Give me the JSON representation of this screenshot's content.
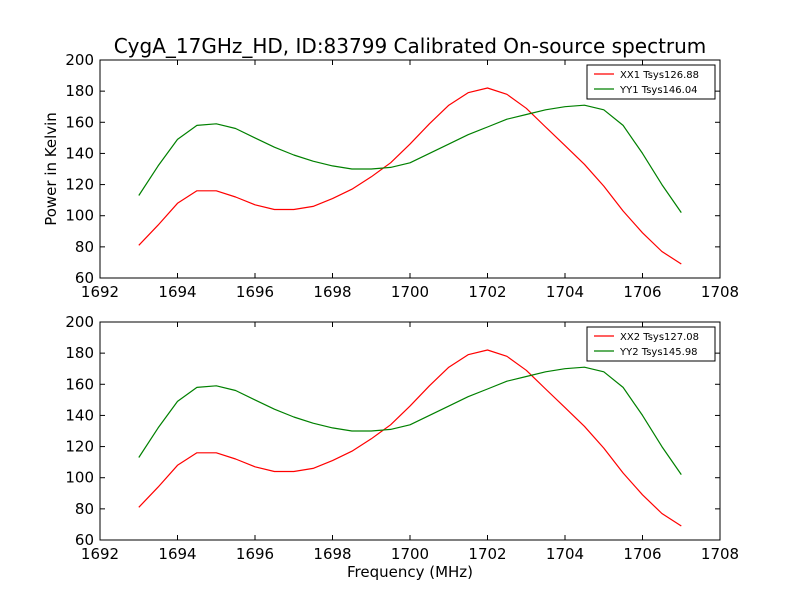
{
  "chart_data": [
    {
      "type": "line",
      "title": "CygA_17GHz_HD, ID:83799 Calibrated On-source spectrum",
      "xlabel": "",
      "ylabel": "Power in Kelvin",
      "xlim": [
        1692,
        1708
      ],
      "ylim": [
        60,
        200
      ],
      "xticks": [
        "1692",
        "1694",
        "1696",
        "1698",
        "1700",
        "1702",
        "1704",
        "1706",
        "1708"
      ],
      "yticks": [
        "60",
        "80",
        "100",
        "120",
        "140",
        "160",
        "180",
        "200"
      ],
      "legend_position": "top-right",
      "grid": false,
      "series": [
        {
          "name": "XX1 Tsys126.88",
          "color": "#ff0000",
          "x": [
            1693.0,
            1693.5,
            1694.0,
            1694.5,
            1695.0,
            1695.5,
            1696.0,
            1696.5,
            1697.0,
            1697.5,
            1698.0,
            1698.5,
            1699.0,
            1699.5,
            1700.0,
            1700.5,
            1701.0,
            1701.5,
            1702.0,
            1702.5,
            1703.0,
            1703.5,
            1704.0,
            1704.5,
            1705.0,
            1705.5,
            1706.0,
            1706.5,
            1707.0
          ],
          "y": [
            81,
            94,
            108,
            116,
            116,
            112,
            107,
            104,
            104,
            106,
            111,
            117,
            125,
            134,
            146,
            159,
            171,
            179,
            182,
            178,
            169,
            157,
            145,
            133,
            119,
            103,
            89,
            77,
            69
          ]
        },
        {
          "name": "YY1 Tsys146.04",
          "color": "#008000",
          "x": [
            1693.0,
            1693.5,
            1694.0,
            1694.5,
            1695.0,
            1695.5,
            1696.0,
            1696.5,
            1697.0,
            1697.5,
            1698.0,
            1698.5,
            1699.0,
            1699.5,
            1700.0,
            1700.5,
            1701.0,
            1701.5,
            1702.0,
            1702.5,
            1703.0,
            1703.5,
            1704.0,
            1704.5,
            1705.0,
            1705.5,
            1706.0,
            1706.5,
            1707.0
          ],
          "y": [
            113,
            132,
            149,
            158,
            159,
            156,
            150,
            144,
            139,
            135,
            132,
            130,
            130,
            131,
            134,
            140,
            146,
            152,
            157,
            162,
            165,
            168,
            170,
            171,
            168,
            158,
            140,
            120,
            102
          ]
        }
      ]
    },
    {
      "type": "line",
      "title": "",
      "xlabel": "Frequency (MHz)",
      "ylabel": "",
      "xlim": [
        1692,
        1708
      ],
      "ylim": [
        60,
        200
      ],
      "xticks": [
        "1692",
        "1694",
        "1696",
        "1698",
        "1700",
        "1702",
        "1704",
        "1706",
        "1708"
      ],
      "yticks": [
        "60",
        "80",
        "100",
        "120",
        "140",
        "160",
        "180",
        "200"
      ],
      "legend_position": "top-right",
      "grid": false,
      "series": [
        {
          "name": "XX2 Tsys127.08",
          "color": "#ff0000",
          "x": [
            1693.0,
            1693.5,
            1694.0,
            1694.5,
            1695.0,
            1695.5,
            1696.0,
            1696.5,
            1697.0,
            1697.5,
            1698.0,
            1698.5,
            1699.0,
            1699.5,
            1700.0,
            1700.5,
            1701.0,
            1701.5,
            1702.0,
            1702.5,
            1703.0,
            1703.5,
            1704.0,
            1704.5,
            1705.0,
            1705.5,
            1706.0,
            1706.5,
            1707.0
          ],
          "y": [
            81,
            94,
            108,
            116,
            116,
            112,
            107,
            104,
            104,
            106,
            111,
            117,
            125,
            134,
            146,
            159,
            171,
            179,
            182,
            178,
            169,
            157,
            145,
            133,
            119,
            103,
            89,
            77,
            69
          ]
        },
        {
          "name": "YY2 Tsys145.98",
          "color": "#008000",
          "x": [
            1693.0,
            1693.5,
            1694.0,
            1694.5,
            1695.0,
            1695.5,
            1696.0,
            1696.5,
            1697.0,
            1697.5,
            1698.0,
            1698.5,
            1699.0,
            1699.5,
            1700.0,
            1700.5,
            1701.0,
            1701.5,
            1702.0,
            1702.5,
            1703.0,
            1703.5,
            1704.0,
            1704.5,
            1705.0,
            1705.5,
            1706.0,
            1706.5,
            1707.0
          ],
          "y": [
            113,
            132,
            149,
            158,
            159,
            156,
            150,
            144,
            139,
            135,
            132,
            130,
            130,
            131,
            134,
            140,
            146,
            152,
            157,
            162,
            165,
            168,
            170,
            171,
            168,
            158,
            140,
            120,
            102
          ]
        }
      ]
    }
  ]
}
